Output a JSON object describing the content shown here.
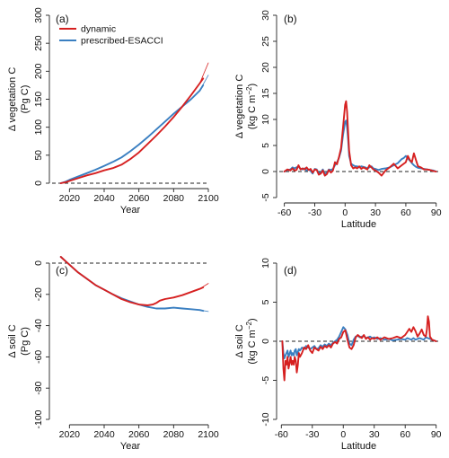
{
  "colors": {
    "dynamic": "#d62020",
    "prescribed": "#3a7fc1",
    "axis": "#222222"
  },
  "legend": {
    "dynamic": "dynamic",
    "prescribed": "prescribed-ESACCI"
  },
  "chart_data": [
    {
      "type": "line",
      "panel_label": "(a)",
      "xlabel": "Year",
      "ylabel": "Δ vegetation C",
      "ylabel2": "(Pg C)",
      "xlim": [
        2010,
        2100
      ],
      "ylim": [
        0,
        300
      ],
      "xticks": [
        2020,
        2040,
        2060,
        2080,
        2100
      ],
      "yticks": [
        0,
        50,
        100,
        150,
        200,
        250,
        300
      ],
      "zero_line": 0,
      "legend_position": "top-left",
      "series": [
        {
          "key": "dynamic",
          "x": [
            2015,
            2018,
            2020,
            2025,
            2030,
            2035,
            2040,
            2045,
            2050,
            2055,
            2060,
            2065,
            2070,
            2075,
            2080,
            2085,
            2090,
            2095,
            2097
          ],
          "y": [
            0,
            2,
            4,
            9,
            14,
            18,
            23,
            27,
            33,
            43,
            55,
            70,
            85,
            101,
            118,
            137,
            157,
            178,
            187
          ]
        },
        {
          "key": "prescribed",
          "x": [
            2015,
            2018,
            2020,
            2025,
            2030,
            2035,
            2040,
            2045,
            2050,
            2055,
            2060,
            2065,
            2070,
            2075,
            2080,
            2085,
            2090,
            2095,
            2097
          ],
          "y": [
            0,
            3,
            6,
            12,
            18,
            24,
            31,
            38,
            46,
            57,
            69,
            82,
            96,
            110,
            124,
            137,
            150,
            165,
            175
          ]
        },
        {
          "key": "dynamic",
          "thin": true,
          "x": [
            2095,
            2100
          ],
          "y": [
            178,
            215
          ]
        },
        {
          "key": "prescribed",
          "thin": true,
          "x": [
            2095,
            2100
          ],
          "y": [
            165,
            193
          ]
        }
      ]
    },
    {
      "type": "line",
      "panel_label": "(b)",
      "xlabel": "Latitude",
      "ylabel": "Δ vegetation C",
      "ylabel2": "(kg C m",
      "ylabel2_sup": "−2",
      "ylabel2_end": ")",
      "xlim": [
        -65,
        92
      ],
      "ylim": [
        -5,
        30
      ],
      "xticks": [
        -60,
        -30,
        0,
        30,
        60,
        90
      ],
      "yticks": [
        -5,
        0,
        5,
        10,
        15,
        20,
        25,
        30
      ],
      "zero_line": 0,
      "series": [
        {
          "key": "dynamic",
          "x": [
            -60,
            -57,
            -54,
            -52,
            -50,
            -48,
            -46,
            -44,
            -42,
            -40,
            -38,
            -36,
            -34,
            -32,
            -30,
            -28,
            -26,
            -24,
            -22,
            -20,
            -18,
            -16,
            -14,
            -12,
            -10,
            -8,
            -6,
            -4,
            -2,
            0,
            1,
            2,
            3,
            4,
            6,
            8,
            10,
            12,
            14,
            16,
            18,
            20,
            22,
            24,
            26,
            28,
            30,
            33,
            36,
            40,
            44,
            48,
            52,
            56,
            60,
            62,
            64,
            66,
            68,
            70,
            72,
            75,
            78,
            81,
            84,
            87,
            90
          ],
          "y": [
            0,
            0.4,
            0.2,
            0.6,
            0.2,
            0.3,
            1.2,
            0.4,
            0.6,
            0.4,
            0.8,
            0.3,
            0.5,
            -0.2,
            0.4,
            0.3,
            -0.6,
            -0.4,
            0.2,
            -0.8,
            -0.5,
            0.3,
            -0.2,
            0.2,
            1.8,
            1.4,
            2.8,
            4.5,
            8.5,
            12.8,
            13.5,
            11.5,
            7.5,
            4,
            1.2,
            0.6,
            0.8,
            0.6,
            1,
            0.5,
            0.8,
            0.6,
            0.4,
            1.2,
            0.8,
            0.4,
            0.2,
            -0.2,
            -0.8,
            0.2,
            0.8,
            1.5,
            0.6,
            1.2,
            1.8,
            3,
            2.2,
            1.8,
            3.5,
            2.2,
            1,
            0.8,
            0.4,
            0.4,
            0.3,
            0.1,
            0
          ]
        },
        {
          "key": "prescribed",
          "x": [
            -60,
            -57,
            -54,
            -52,
            -50,
            -48,
            -46,
            -44,
            -42,
            -40,
            -38,
            -36,
            -34,
            -32,
            -30,
            -28,
            -26,
            -24,
            -22,
            -20,
            -18,
            -16,
            -14,
            -12,
            -10,
            -8,
            -6,
            -4,
            -2,
            0,
            1,
            2,
            3,
            4,
            6,
            8,
            10,
            12,
            14,
            16,
            18,
            20,
            22,
            24,
            26,
            28,
            30,
            33,
            36,
            40,
            44,
            48,
            52,
            56,
            58,
            60,
            62,
            64,
            66,
            68,
            70,
            72,
            75,
            78,
            81,
            84,
            87,
            90
          ],
          "y": [
            0,
            0.3,
            0.4,
            0.8,
            0.6,
            0.8,
            1,
            0.5,
            0.4,
            0.6,
            0.2,
            0.4,
            0.1,
            -0.4,
            0.5,
            0.4,
            -0.3,
            -0.2,
            0.4,
            -0.5,
            -0.2,
            0.4,
            0.3,
            0.5,
            1.2,
            1.8,
            2.6,
            4,
            7,
            9.5,
            9.8,
            8.5,
            6,
            3,
            1.5,
            1.2,
            1,
            1,
            0.8,
            1,
            0.9,
            0.8,
            0.6,
            0.8,
            1,
            0.6,
            0.5,
            0.3,
            0.5,
            0.6,
            0.8,
            1.2,
            1.6,
            2.4,
            2.6,
            3,
            2.5,
            2.1,
            1.6,
            1.2,
            0.9,
            0.7,
            0.6,
            0.5,
            0.4,
            0.3,
            0.2,
            0
          ]
        }
      ]
    },
    {
      "type": "line",
      "panel_label": "(c)",
      "xlabel": "Year",
      "ylabel": "Δ soil C",
      "ylabel2": "(Pg C)",
      "xlim": [
        2010,
        2100
      ],
      "ylim": [
        -100,
        0
      ],
      "xticks": [
        2020,
        2040,
        2060,
        2080,
        2100
      ],
      "yticks": [
        0,
        -20,
        -40,
        -60,
        -80,
        -100
      ],
      "zero_line": 0,
      "series": [
        {
          "key": "dynamic",
          "x": [
            2015,
            2018,
            2020,
            2025,
            2030,
            2035,
            2040,
            2045,
            2050,
            2055,
            2060,
            2065,
            2068,
            2070,
            2072,
            2075,
            2080,
            2085,
            2090,
            2095,
            2097
          ],
          "y": [
            4,
            1,
            -1,
            -6,
            -10,
            -14,
            -17,
            -20,
            -23,
            -25,
            -26.5,
            -27,
            -26.5,
            -25.5,
            -24,
            -23,
            -22,
            -20.5,
            -18.5,
            -16.5,
            -15.5
          ]
        },
        {
          "key": "prescribed",
          "x": [
            2015,
            2018,
            2020,
            2025,
            2030,
            2035,
            2040,
            2045,
            2050,
            2055,
            2060,
            2065,
            2070,
            2075,
            2080,
            2085,
            2090,
            2095,
            2097
          ],
          "y": [
            4,
            1,
            -1,
            -6,
            -10,
            -14,
            -17,
            -20,
            -22.5,
            -24.5,
            -26.5,
            -28,
            -29,
            -29,
            -28.5,
            -29,
            -29.5,
            -30,
            -30.5
          ]
        },
        {
          "key": "dynamic",
          "thin": true,
          "x": [
            2095,
            2100
          ],
          "y": [
            -16.5,
            -13
          ]
        },
        {
          "key": "prescribed",
          "thin": true,
          "x": [
            2095,
            2100
          ],
          "y": [
            -30,
            -31
          ]
        }
      ]
    },
    {
      "type": "line",
      "panel_label": "(d)",
      "xlabel": "Latitude",
      "ylabel": "Δ soil C",
      "ylabel2": "(kg C m",
      "ylabel2_sup": "−2",
      "ylabel2_end": ")",
      "xlim": [
        -62,
        92
      ],
      "ylim": [
        -10,
        10
      ],
      "xticks": [
        -60,
        -30,
        0,
        30,
        60,
        90
      ],
      "yticks": [
        -10,
        -5,
        0,
        5,
        10
      ],
      "zero_line": 0,
      "series": [
        {
          "key": "dynamic",
          "x": [
            -59,
            -58,
            -57,
            -56,
            -55,
            -54,
            -53,
            -52,
            -51,
            -50,
            -49,
            -48,
            -47,
            -46,
            -45,
            -44,
            -43,
            -42,
            -40,
            -38,
            -36,
            -34,
            -32,
            -30,
            -28,
            -26,
            -24,
            -22,
            -20,
            -18,
            -16,
            -14,
            -12,
            -10,
            -8,
            -6,
            -4,
            -2,
            0,
            2,
            4,
            6,
            8,
            10,
            12,
            14,
            16,
            18,
            20,
            22,
            24,
            26,
            28,
            30,
            33,
            36,
            40,
            44,
            48,
            52,
            56,
            60,
            62,
            64,
            66,
            68,
            70,
            72,
            74,
            76,
            78,
            80,
            81,
            82,
            83,
            84,
            86,
            88,
            90
          ],
          "y": [
            0,
            -3.5,
            -5,
            -2.5,
            -3,
            -2,
            -3.5,
            -2.8,
            -2,
            -3,
            -2.5,
            -3,
            -2,
            -2.5,
            -4,
            -3,
            -1.5,
            -2,
            -1.5,
            -0.8,
            -1,
            -0.5,
            -1.2,
            -1.5,
            -0.8,
            -1,
            -1.2,
            -0.7,
            -1,
            -0.6,
            -0.8,
            -0.5,
            -0.8,
            -0.3,
            -0.1,
            -0.3,
            0.3,
            0.5,
            1.2,
            1.4,
            0.2,
            -0.8,
            -1,
            -0.5,
            0.5,
            0.8,
            0.6,
            0.4,
            0.8,
            0.3,
            0.5,
            0.2,
            0.4,
            0.3,
            0.5,
            0.2,
            0.5,
            0.3,
            0.4,
            0.6,
            0.4,
            0.8,
            1.2,
            1.6,
            1.2,
            1.8,
            1.3,
            0.6,
            1,
            1.5,
            0.8,
            0.6,
            1.5,
            3.2,
            2.5,
            0.6,
            0.2,
            0.1,
            0
          ]
        },
        {
          "key": "prescribed",
          "x": [
            -59,
            -58,
            -57,
            -56,
            -55,
            -54,
            -53,
            -52,
            -51,
            -50,
            -49,
            -48,
            -47,
            -46,
            -45,
            -44,
            -43,
            -42,
            -40,
            -38,
            -36,
            -34,
            -32,
            -30,
            -28,
            -26,
            -24,
            -22,
            -20,
            -18,
            -16,
            -14,
            -12,
            -10,
            -8,
            -6,
            -4,
            -2,
            0,
            2,
            4,
            6,
            8,
            10,
            12,
            14,
            16,
            18,
            20,
            22,
            24,
            26,
            28,
            30,
            33,
            36,
            40,
            44,
            48,
            52,
            56,
            60,
            62,
            64,
            66,
            68,
            70,
            72,
            74,
            76,
            78,
            80,
            82,
            84,
            86,
            88,
            90
          ],
          "y": [
            0,
            -1.5,
            -2.2,
            -1.8,
            -1.5,
            -1.2,
            -2,
            -1.6,
            -1.2,
            -1.8,
            -1.5,
            -1.8,
            -1.2,
            -1,
            -1.8,
            -1.4,
            -1,
            -1.2,
            -0.8,
            -1,
            -0.6,
            -0.8,
            -1,
            -0.8,
            -0.6,
            -1,
            -0.9,
            -0.5,
            -0.7,
            -0.4,
            -0.6,
            -0.3,
            -0.5,
            -0.2,
            0,
            0.2,
            0.6,
            1.2,
            1.8,
            1.5,
            0.8,
            -0.3,
            -0.5,
            0.2,
            0.6,
            0.7,
            0.5,
            0.6,
            0.7,
            0.4,
            0.5,
            0.6,
            0.4,
            0.5,
            0.3,
            0.4,
            0.2,
            0.3,
            0.1,
            0.2,
            0.3,
            0.2,
            0.4,
            0.3,
            0.2,
            0.4,
            0.2,
            0.3,
            0.4,
            0.3,
            0.2,
            0.5,
            0.4,
            0.3,
            0.2,
            0.1,
            0
          ]
        }
      ]
    }
  ]
}
